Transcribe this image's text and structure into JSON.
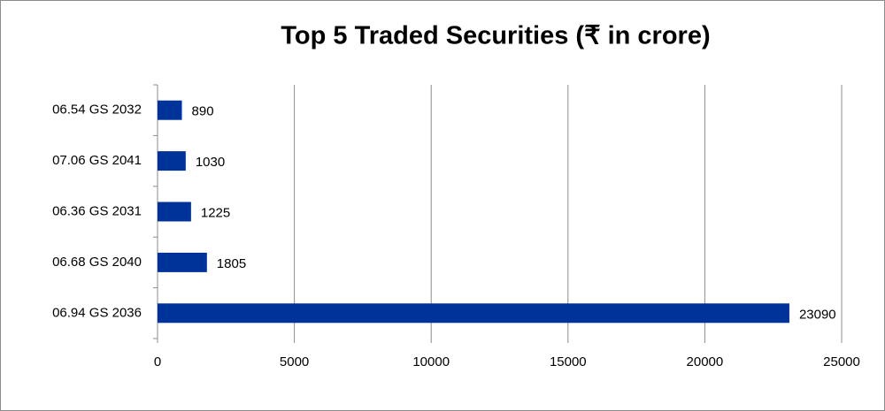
{
  "chart_data": {
    "type": "bar",
    "title": "Top 5 Traded Securities (₹ in crore)",
    "categories": [
      "06.54 GS 2032",
      "07.06 GS 2041",
      "06.36 GS 2031",
      "06.68 GS 2040",
      "06.94 GS 2036"
    ],
    "values": [
      890,
      1030,
      1225,
      1805,
      23090
    ],
    "color": "#003399",
    "xlim": [
      0,
      25000
    ],
    "xticks": [
      0,
      5000,
      10000,
      15000,
      20000,
      25000
    ],
    "grid": true
  }
}
